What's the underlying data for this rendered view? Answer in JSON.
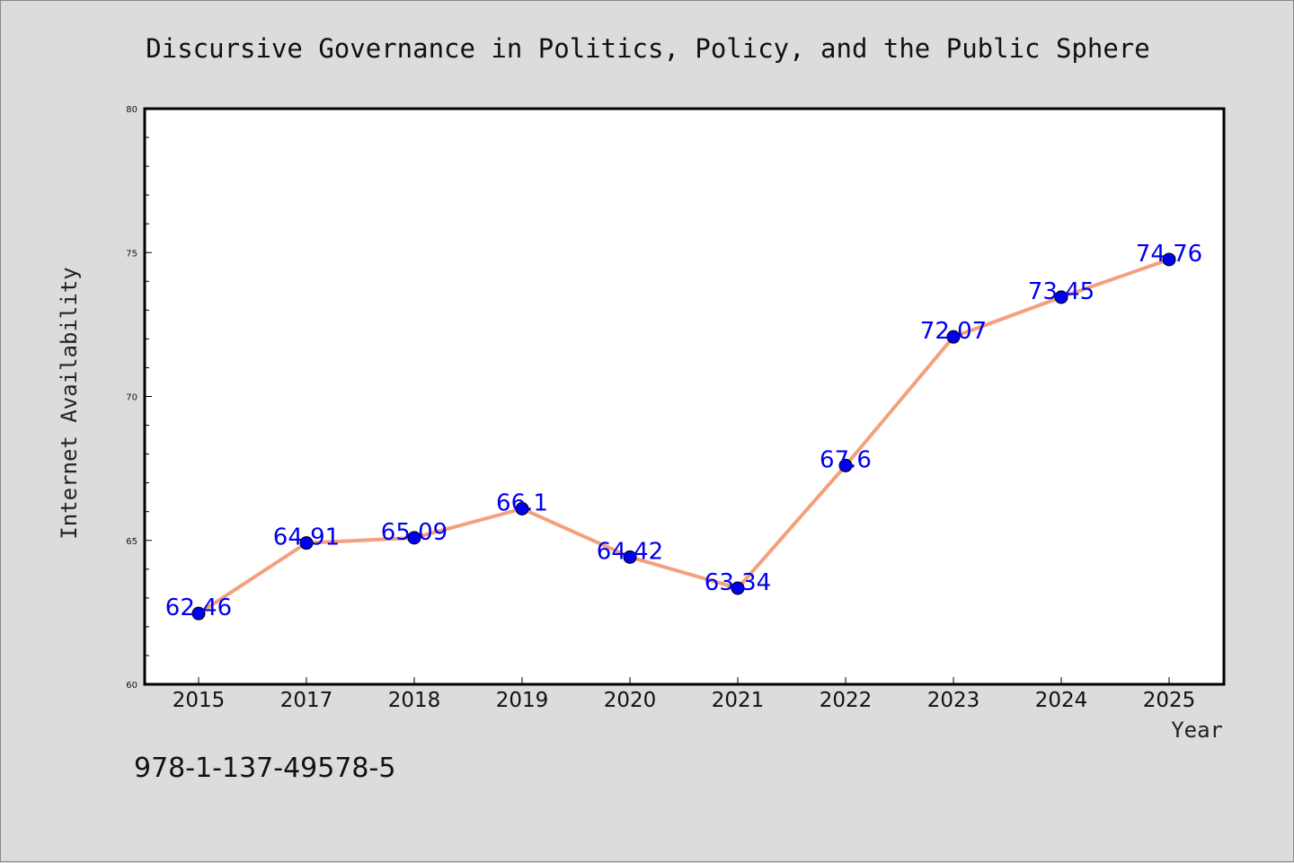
{
  "chart_data": {
    "type": "line",
    "title": "Discursive Governance in Politics, Policy, and the Public Sphere",
    "xlabel": "Year",
    "ylabel": "Internet Availability",
    "categories": [
      "2015",
      "2017",
      "2018",
      "2019",
      "2020",
      "2021",
      "2022",
      "2023",
      "2024",
      "2025"
    ],
    "series": [
      {
        "values": [
          62.46,
          64.91,
          65.09,
          66.1,
          64.42,
          63.34,
          67.6,
          72.07,
          73.45,
          74.76
        ],
        "labels": [
          "62.46",
          "64.91",
          "65.09",
          "66.1",
          "64.42",
          "63.34",
          "67.6",
          "72.07",
          "73.45",
          "74.76"
        ]
      }
    ],
    "ylim": [
      60,
      80
    ],
    "yticks": [
      "60",
      "65",
      "70",
      "75",
      "80"
    ],
    "grid": false,
    "colors": {
      "line": "#f4a07c",
      "marker": "#0000ee",
      "label": "#0000ee"
    }
  },
  "footer": {
    "code": "978-1-137-49578-5"
  }
}
